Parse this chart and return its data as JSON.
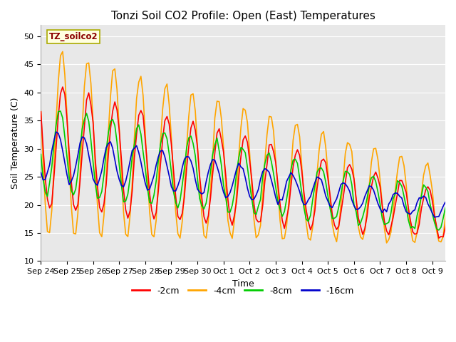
{
  "title": "Tonzi Soil CO2 Profile: Open (East) Temperatures",
  "xlabel": "Time",
  "ylabel": "Soil Temperature (C)",
  "ylim": [
    10,
    52
  ],
  "yticks": [
    10,
    15,
    20,
    25,
    30,
    35,
    40,
    45,
    50
  ],
  "legend_label": "TZ_soilco2",
  "series_labels": [
    "-2cm",
    "-4cm",
    "-8cm",
    "-16cm"
  ],
  "series_colors": [
    "#ff0000",
    "#ffa500",
    "#00cc00",
    "#0000cc"
  ],
  "background_color": "#e8e8e8",
  "title_fontsize": 11,
  "axis_fontsize": 9,
  "tick_fontsize": 8,
  "legend_fontsize": 9,
  "line_width": 1.2,
  "figwidth": 6.4,
  "figheight": 4.8,
  "dpi": 100
}
